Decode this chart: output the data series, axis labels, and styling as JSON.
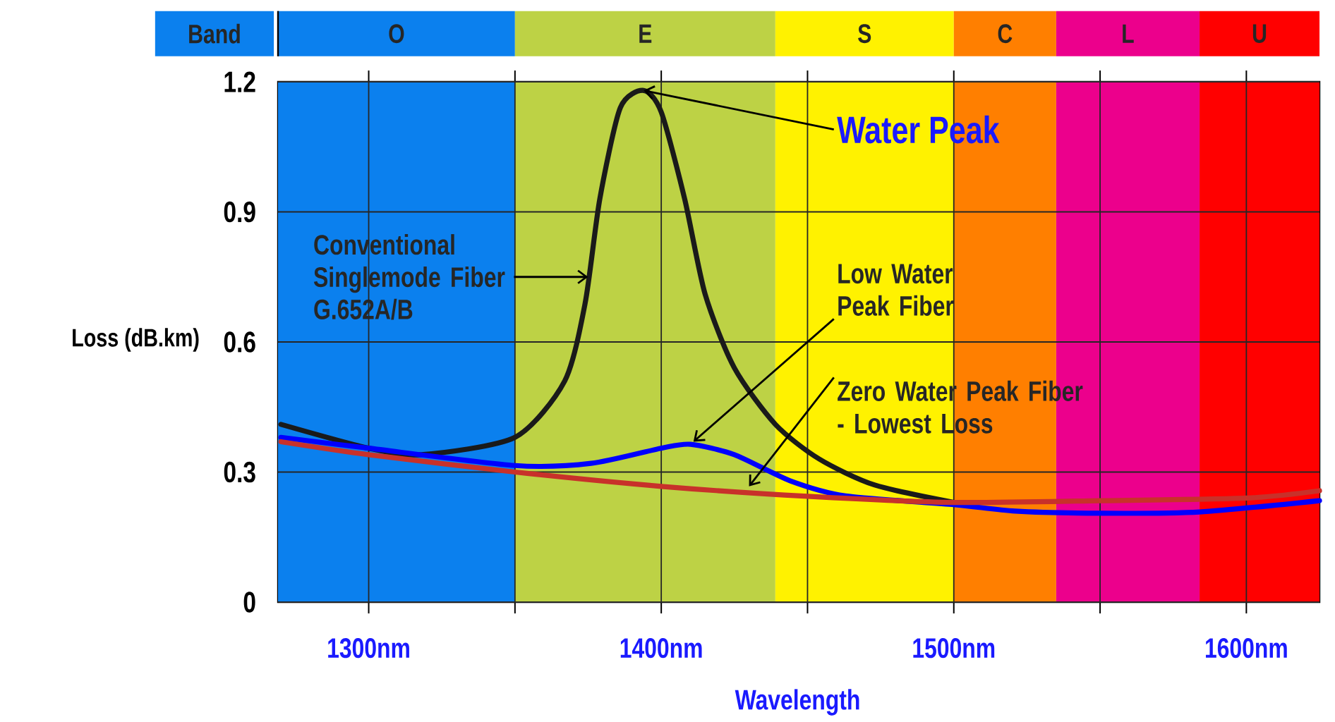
{
  "chart_data": {
    "type": "line",
    "xlabel": "Wavelength",
    "ylabel": "Loss (dB.km)",
    "xlim": [
      1269,
      1625
    ],
    "ylim": [
      0,
      1.2
    ],
    "xticks": [
      {
        "value": 1300,
        "label": "1300nm"
      },
      {
        "value": 1350,
        "label": null
      },
      {
        "value": 1400,
        "label": "1400nm"
      },
      {
        "value": 1450,
        "label": null
      },
      {
        "value": 1500,
        "label": "1500nm"
      },
      {
        "value": 1550,
        "label": null
      },
      {
        "value": 1600,
        "label": "1600nm"
      }
    ],
    "yticks": [
      0,
      0.3,
      0.6,
      0.9,
      1.2
    ],
    "grid": true,
    "marker": "none",
    "line_style": "solid",
    "bands": [
      {
        "axis": "x",
        "from": 1269,
        "to": 1350,
        "label": "O",
        "color": "#0b80ee"
      },
      {
        "axis": "x",
        "from": 1350,
        "to": 1439,
        "label": "E",
        "color": "#bdd245"
      },
      {
        "axis": "x",
        "from": 1439,
        "to": 1500,
        "label": "S",
        "color": "#fff200"
      },
      {
        "axis": "x",
        "from": 1500,
        "to": 1535,
        "label": "C",
        "color": "#ff7f00"
      },
      {
        "axis": "x",
        "from": 1535,
        "to": 1584,
        "label": "L",
        "color": "#ec008c"
      },
      {
        "axis": "x",
        "from": 1584,
        "to": 1625,
        "label": "U",
        "color": "#ff0000"
      }
    ],
    "series": [
      {
        "color": "#1a1a1a",
        "x": [
          1270,
          1300,
          1318,
          1350,
          1367,
          1374,
          1379,
          1386,
          1394,
          1400,
          1408,
          1415,
          1425,
          1439,
          1454,
          1473,
          1500
        ],
        "values": [
          0.41,
          0.355,
          0.34,
          0.38,
          0.51,
          0.69,
          0.93,
          1.14,
          1.18,
          1.13,
          0.93,
          0.71,
          0.54,
          0.41,
          0.33,
          0.27,
          0.23
        ]
      },
      {
        "color": "#0000ff",
        "x": [
          1270,
          1300,
          1350,
          1376,
          1400,
          1410,
          1425,
          1444,
          1463,
          1500,
          1521,
          1550,
          1584,
          1625
        ],
        "values": [
          0.38,
          0.355,
          0.315,
          0.32,
          0.355,
          0.364,
          0.34,
          0.28,
          0.245,
          0.225,
          0.21,
          0.205,
          0.208,
          0.234
        ]
      },
      {
        "color": "#c8312a",
        "x": [
          1270,
          1300,
          1350,
          1400,
          1450,
          1500,
          1550,
          1600,
          1625
        ],
        "values": [
          0.37,
          0.34,
          0.3,
          0.267,
          0.244,
          0.23,
          0.234,
          0.24,
          0.257
        ]
      }
    ],
    "annotations": [
      {
        "text": "Water Peak",
        "x": 1394,
        "y": 1.18
      },
      {
        "text": "Conventional Singlemode Fiber G.652A/B",
        "x": 1375,
        "y": 0.75
      },
      {
        "text": "Low Water Peak Fiber",
        "x": 1411,
        "y": 0.37
      },
      {
        "text": "Zero Water Peak Fiber - Lowest Loss",
        "x": 1430,
        "y": 0.267
      },
      "Band"
    ]
  }
}
